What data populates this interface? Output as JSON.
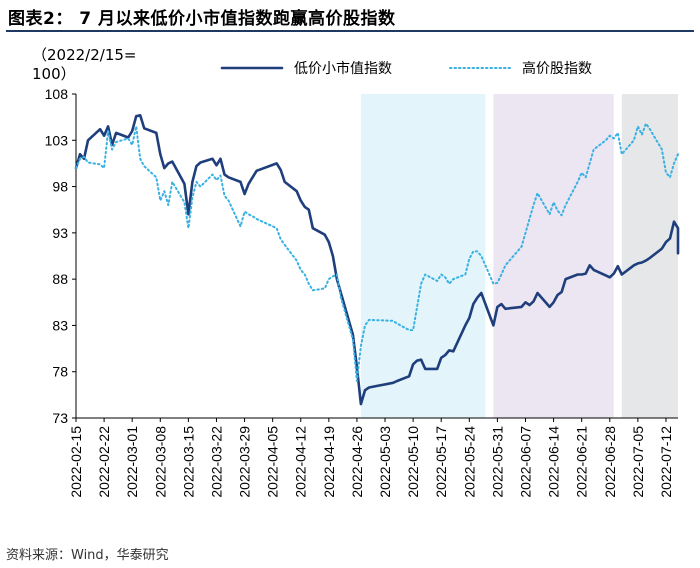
{
  "title": "图表2： 7 月以来低价小市值指数跑赢高价股指数",
  "source": "资料来源：Wind，华泰研究",
  "chart_data": {
    "type": "line",
    "y_unit_label": [
      "（2022/2/15=",
      "100）"
    ],
    "ylim": [
      73,
      108
    ],
    "yticks": [
      "108",
      "103",
      "98",
      "93",
      "88",
      "83",
      "78",
      "73"
    ],
    "xticks": [
      "2022-02-15",
      "2022-02-22",
      "2022-03-01",
      "2022-03-08",
      "2022-03-15",
      "2022-03-22",
      "2022-03-29",
      "2022-04-05",
      "2022-04-12",
      "2022-04-19",
      "2022-04-26",
      "2022-05-03",
      "2022-05-10",
      "2022-05-17",
      "2022-05-24",
      "2022-05-31",
      "2022-06-07",
      "2022-06-14",
      "2022-06-21",
      "2022-06-28",
      "2022-07-05",
      "2022-07-12"
    ],
    "x_start": "2022-02-15",
    "x_end": "2022-07-15",
    "shaded_periods": [
      {
        "start": "2022-04-27",
        "end": "2022-05-28",
        "color": "#e3f4fb"
      },
      {
        "start": "2022-05-30",
        "end": "2022-06-29",
        "color": "#ece6f2"
      },
      {
        "start": "2022-07-01",
        "end": "2022-07-15",
        "color": "#e6e7e9"
      }
    ],
    "series": [
      {
        "name": "低价小市值指数",
        "color": "#1f3e7c",
        "style": "solid",
        "points": [
          [
            "2022-02-15",
            100.0
          ],
          [
            "2022-02-16",
            101.5
          ],
          [
            "2022-02-17",
            101.0
          ],
          [
            "2022-02-18",
            103.0
          ],
          [
            "2022-02-21",
            104.2
          ],
          [
            "2022-02-22",
            103.5
          ],
          [
            "2022-02-23",
            104.5
          ],
          [
            "2022-02-24",
            102.5
          ],
          [
            "2022-02-25",
            103.8
          ],
          [
            "2022-02-28",
            103.3
          ],
          [
            "2022-03-01",
            104.0
          ],
          [
            "2022-03-02",
            105.6
          ],
          [
            "2022-03-03",
            105.7
          ],
          [
            "2022-03-04",
            104.3
          ],
          [
            "2022-03-07",
            103.8
          ],
          [
            "2022-03-08",
            101.5
          ],
          [
            "2022-03-09",
            100.0
          ],
          [
            "2022-03-10",
            100.5
          ],
          [
            "2022-03-11",
            100.7
          ],
          [
            "2022-03-14",
            98.3
          ],
          [
            "2022-03-15",
            95.0
          ],
          [
            "2022-03-16",
            98.5
          ],
          [
            "2022-03-17",
            100.2
          ],
          [
            "2022-03-18",
            100.6
          ],
          [
            "2022-03-21",
            101.0
          ],
          [
            "2022-03-22",
            100.3
          ],
          [
            "2022-03-23",
            101.0
          ],
          [
            "2022-03-24",
            99.3
          ],
          [
            "2022-03-25",
            99.0
          ],
          [
            "2022-03-28",
            98.5
          ],
          [
            "2022-03-29",
            97.2
          ],
          [
            "2022-03-30",
            98.3
          ],
          [
            "2022-03-31",
            99.0
          ],
          [
            "2022-04-01",
            99.7
          ],
          [
            "2022-04-06",
            100.5
          ],
          [
            "2022-04-07",
            99.8
          ],
          [
            "2022-04-08",
            98.5
          ],
          [
            "2022-04-11",
            97.5
          ],
          [
            "2022-04-12",
            96.5
          ],
          [
            "2022-04-13",
            95.8
          ],
          [
            "2022-04-14",
            95.5
          ],
          [
            "2022-04-15",
            93.5
          ],
          [
            "2022-04-18",
            92.8
          ],
          [
            "2022-04-19",
            92.0
          ],
          [
            "2022-04-20",
            90.5
          ],
          [
            "2022-04-21",
            88.0
          ],
          [
            "2022-04-22",
            86.5
          ],
          [
            "2022-04-25",
            82.0
          ],
          [
            "2022-04-26",
            78.5
          ],
          [
            "2022-04-27",
            74.5
          ],
          [
            "2022-04-28",
            76.0
          ],
          [
            "2022-04-29",
            76.3
          ],
          [
            "2022-05-05",
            76.8
          ],
          [
            "2022-05-06",
            77.0
          ],
          [
            "2022-05-09",
            77.5
          ],
          [
            "2022-05-10",
            78.8
          ],
          [
            "2022-05-11",
            79.2
          ],
          [
            "2022-05-12",
            79.3
          ],
          [
            "2022-05-13",
            78.3
          ],
          [
            "2022-05-16",
            78.3
          ],
          [
            "2022-05-17",
            79.5
          ],
          [
            "2022-05-18",
            79.8
          ],
          [
            "2022-05-19",
            80.3
          ],
          [
            "2022-05-20",
            80.2
          ],
          [
            "2022-05-23",
            83.0
          ],
          [
            "2022-05-24",
            83.8
          ],
          [
            "2022-05-25",
            85.3
          ],
          [
            "2022-05-26",
            86.0
          ],
          [
            "2022-05-27",
            86.5
          ],
          [
            "2022-05-30",
            83.0
          ],
          [
            "2022-05-31",
            85.0
          ],
          [
            "2022-06-01",
            85.3
          ],
          [
            "2022-06-02",
            84.8
          ],
          [
            "2022-06-06",
            85.0
          ],
          [
            "2022-06-07",
            85.5
          ],
          [
            "2022-06-08",
            85.2
          ],
          [
            "2022-06-09",
            85.6
          ],
          [
            "2022-06-10",
            86.5
          ],
          [
            "2022-06-13",
            85.0
          ],
          [
            "2022-06-14",
            85.5
          ],
          [
            "2022-06-15",
            86.3
          ],
          [
            "2022-06-16",
            86.6
          ],
          [
            "2022-06-17",
            88.0
          ],
          [
            "2022-06-20",
            88.5
          ],
          [
            "2022-06-21",
            88.5
          ],
          [
            "2022-06-22",
            88.6
          ],
          [
            "2022-06-23",
            89.5
          ],
          [
            "2022-06-24",
            89.0
          ],
          [
            "2022-06-27",
            88.4
          ],
          [
            "2022-06-28",
            88.2
          ],
          [
            "2022-06-29",
            88.6
          ],
          [
            "2022-06-30",
            89.4
          ],
          [
            "2022-07-01",
            88.5
          ],
          [
            "2022-07-04",
            89.5
          ],
          [
            "2022-07-05",
            89.7
          ],
          [
            "2022-07-06",
            89.8
          ],
          [
            "2022-07-07",
            90.0
          ],
          [
            "2022-07-08",
            90.3
          ],
          [
            "2022-07-11",
            91.3
          ],
          [
            "2022-07-12",
            92.0
          ],
          [
            "2022-07-13",
            92.4
          ],
          [
            "2022-07-14",
            94.2
          ],
          [
            "2022-07-15",
            93.5
          ],
          [
            "2022-07-15",
            90.8
          ]
        ]
      },
      {
        "name": "高价股指数",
        "color": "#39b1e2",
        "style": "dotted",
        "points": [
          [
            "2022-02-15",
            100.0
          ],
          [
            "2022-02-16",
            101.0
          ],
          [
            "2022-02-17",
            101.2
          ],
          [
            "2022-02-18",
            100.6
          ],
          [
            "2022-02-21",
            100.4
          ],
          [
            "2022-02-22",
            100.0
          ],
          [
            "2022-02-23",
            104.0
          ],
          [
            "2022-02-24",
            102.0
          ],
          [
            "2022-02-25",
            102.8
          ],
          [
            "2022-02-28",
            103.2
          ],
          [
            "2022-03-01",
            102.5
          ],
          [
            "2022-03-02",
            104.5
          ],
          [
            "2022-03-03",
            101.0
          ],
          [
            "2022-03-04",
            100.2
          ],
          [
            "2022-03-07",
            99.0
          ],
          [
            "2022-03-08",
            96.5
          ],
          [
            "2022-03-09",
            97.5
          ],
          [
            "2022-03-10",
            96.0
          ],
          [
            "2022-03-11",
            98.5
          ],
          [
            "2022-03-14",
            96.3
          ],
          [
            "2022-03-15",
            93.5
          ],
          [
            "2022-03-16",
            96.8
          ],
          [
            "2022-03-17",
            98.5
          ],
          [
            "2022-03-18",
            98.0
          ],
          [
            "2022-03-21",
            99.3
          ],
          [
            "2022-03-22",
            98.7
          ],
          [
            "2022-03-23",
            99.2
          ],
          [
            "2022-03-24",
            97.0
          ],
          [
            "2022-03-25",
            96.5
          ],
          [
            "2022-03-28",
            93.7
          ],
          [
            "2022-03-29",
            95.3
          ],
          [
            "2022-03-30",
            95.0
          ],
          [
            "2022-03-31",
            94.8
          ],
          [
            "2022-04-01",
            94.5
          ],
          [
            "2022-04-06",
            93.5
          ],
          [
            "2022-04-07",
            92.3
          ],
          [
            "2022-04-08",
            91.7
          ],
          [
            "2022-04-11",
            90.0
          ],
          [
            "2022-04-12",
            89.0
          ],
          [
            "2022-04-13",
            88.5
          ],
          [
            "2022-04-14",
            87.5
          ],
          [
            "2022-04-15",
            86.8
          ],
          [
            "2022-04-18",
            87.0
          ],
          [
            "2022-04-19",
            88.0
          ],
          [
            "2022-04-20",
            88.3
          ],
          [
            "2022-04-21",
            88.5
          ],
          [
            "2022-04-22",
            86.0
          ],
          [
            "2022-04-25",
            81.5
          ],
          [
            "2022-04-26",
            77.0
          ],
          [
            "2022-04-27",
            80.8
          ],
          [
            "2022-04-28",
            83.0
          ],
          [
            "2022-04-29",
            83.6
          ],
          [
            "2022-05-05",
            83.5
          ],
          [
            "2022-05-06",
            83.2
          ],
          [
            "2022-05-09",
            82.5
          ],
          [
            "2022-05-10",
            82.5
          ],
          [
            "2022-05-11",
            85.0
          ],
          [
            "2022-05-12",
            87.5
          ],
          [
            "2022-05-13",
            88.5
          ],
          [
            "2022-05-16",
            87.8
          ],
          [
            "2022-05-17",
            88.5
          ],
          [
            "2022-05-18",
            88.2
          ],
          [
            "2022-05-19",
            87.5
          ],
          [
            "2022-05-20",
            88.0
          ],
          [
            "2022-05-23",
            88.5
          ],
          [
            "2022-05-24",
            90.2
          ],
          [
            "2022-05-25",
            91.0
          ],
          [
            "2022-05-26",
            91.0
          ],
          [
            "2022-05-27",
            90.5
          ],
          [
            "2022-05-30",
            87.5
          ],
          [
            "2022-05-31",
            87.6
          ],
          [
            "2022-06-01",
            88.5
          ],
          [
            "2022-06-02",
            89.5
          ],
          [
            "2022-06-06",
            91.5
          ],
          [
            "2022-06-07",
            93.0
          ],
          [
            "2022-06-08",
            94.5
          ],
          [
            "2022-06-09",
            96.0
          ],
          [
            "2022-06-10",
            97.3
          ],
          [
            "2022-06-13",
            95.0
          ],
          [
            "2022-06-14",
            96.3
          ],
          [
            "2022-06-15",
            95.4
          ],
          [
            "2022-06-16",
            94.9
          ],
          [
            "2022-06-17",
            96.0
          ],
          [
            "2022-06-20",
            98.5
          ],
          [
            "2022-06-21",
            99.5
          ],
          [
            "2022-06-22",
            99.0
          ],
          [
            "2022-06-23",
            100.5
          ],
          [
            "2022-06-24",
            102.0
          ],
          [
            "2022-06-27",
            103.0
          ],
          [
            "2022-06-28",
            103.5
          ],
          [
            "2022-06-29",
            103.2
          ],
          [
            "2022-06-30",
            103.8
          ],
          [
            "2022-07-01",
            101.5
          ],
          [
            "2022-07-04",
            103.0
          ],
          [
            "2022-07-05",
            104.5
          ],
          [
            "2022-07-06",
            103.6
          ],
          [
            "2022-07-07",
            104.8
          ],
          [
            "2022-07-08",
            104.2
          ],
          [
            "2022-07-11",
            102.0
          ],
          [
            "2022-07-12",
            99.5
          ],
          [
            "2022-07-13",
            99.0
          ],
          [
            "2022-07-14",
            100.5
          ],
          [
            "2022-07-15",
            101.5
          ]
        ]
      }
    ]
  }
}
